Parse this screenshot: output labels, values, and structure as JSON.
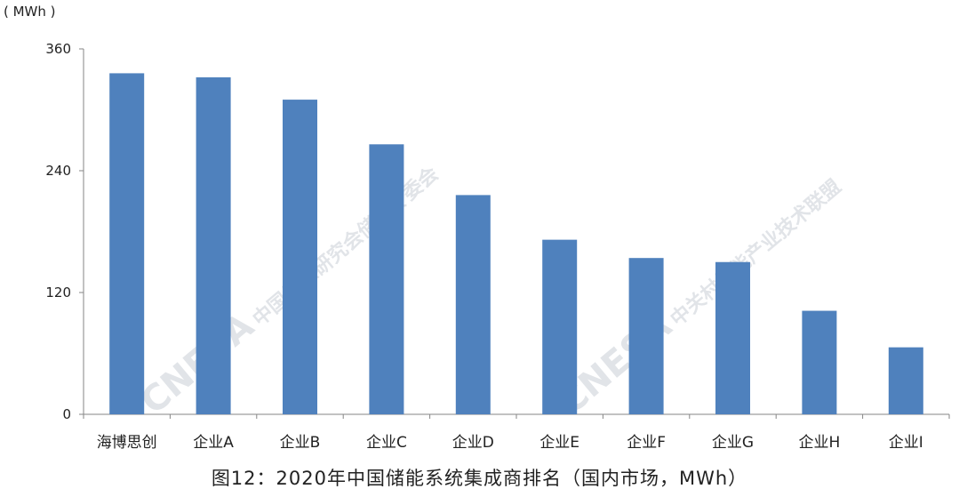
{
  "unit_label": "( MWh )",
  "caption": "图12：2020年中国储能系统集成商排名（国内市场，MWh）",
  "watermark": {
    "logo": "CNESA",
    "line1": "中国能源研究会储能专委会",
    "line2": "中关村储能产业技术联盟"
  },
  "colors": {
    "bar": "#4f81bd",
    "axis": "#868686",
    "text": "#222222"
  },
  "chart_data": {
    "type": "bar",
    "categories": [
      "海博思创",
      "企业A",
      "企业B",
      "企业C",
      "企业D",
      "企业E",
      "企业F",
      "企业G",
      "企业H",
      "企业I"
    ],
    "values": [
      336,
      332,
      310,
      266,
      216,
      172,
      154,
      150,
      102,
      66
    ],
    "yticks": [
      "0",
      "120",
      "240",
      "360"
    ],
    "ylim": [
      0,
      360
    ],
    "ylabel": "( MWh )",
    "grid": false,
    "legend": "none"
  }
}
